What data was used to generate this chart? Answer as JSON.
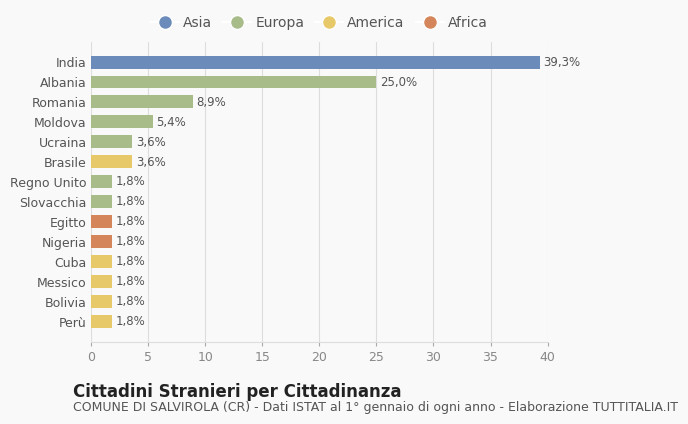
{
  "countries": [
    "India",
    "Albania",
    "Romania",
    "Moldova",
    "Ucraina",
    "Brasile",
    "Regno Unito",
    "Slovacchia",
    "Egitto",
    "Nigeria",
    "Cuba",
    "Messico",
    "Bolivia",
    "Perù"
  ],
  "values": [
    39.3,
    25.0,
    8.9,
    5.4,
    3.6,
    3.6,
    1.8,
    1.8,
    1.8,
    1.8,
    1.8,
    1.8,
    1.8,
    1.8
  ],
  "labels": [
    "39,3%",
    "25,0%",
    "8,9%",
    "5,4%",
    "3,6%",
    "3,6%",
    "1,8%",
    "1,8%",
    "1,8%",
    "1,8%",
    "1,8%",
    "1,8%",
    "1,8%",
    "1,8%"
  ],
  "continents": [
    "Asia",
    "Europa",
    "Europa",
    "Europa",
    "Europa",
    "America",
    "Europa",
    "Europa",
    "Africa",
    "Africa",
    "America",
    "America",
    "America",
    "America"
  ],
  "continent_colors": {
    "Asia": "#6b8cba",
    "Europa": "#a8bc8a",
    "America": "#e8c96a",
    "Africa": "#d4855a"
  },
  "legend_order": [
    "Asia",
    "Europa",
    "America",
    "Africa"
  ],
  "title": "Cittadini Stranieri per Cittadinanza",
  "subtitle": "COMUNE DI SALVIROLA (CR) - Dati ISTAT al 1° gennaio di ogni anno - Elaborazione TUTTITALIA.IT",
  "xlim": [
    0,
    40
  ],
  "xticks": [
    0,
    5,
    10,
    15,
    20,
    25,
    30,
    35,
    40
  ],
  "background_color": "#f9f9f9",
  "grid_color": "#dddddd",
  "bar_height": 0.65,
  "title_fontsize": 12,
  "subtitle_fontsize": 9,
  "label_fontsize": 8.5,
  "tick_fontsize": 9,
  "legend_fontsize": 10
}
